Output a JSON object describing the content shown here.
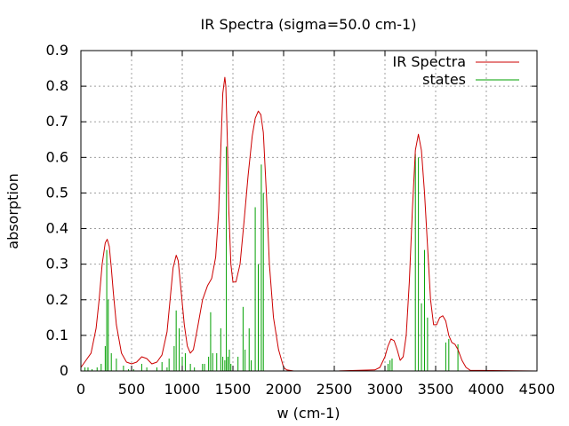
{
  "chart_data": {
    "type": "line",
    "title": "IR Spectra (sigma=50.0 cm-1)",
    "xlabel": "w (cm-1)",
    "ylabel": "absorption",
    "xlim": [
      0,
      4500
    ],
    "ylim": [
      0,
      0.9
    ],
    "xticks": [
      0,
      500,
      1000,
      1500,
      2000,
      2500,
      3000,
      3500,
      4000,
      4500
    ],
    "yticks": [
      0,
      0.1,
      0.2,
      0.3,
      0.4,
      0.5,
      0.6,
      0.7,
      0.8,
      0.9
    ],
    "xtick_labels": [
      "0",
      "500",
      "1000",
      "1500",
      "2000",
      "2500",
      "3000",
      "3500",
      "4000",
      "4500"
    ],
    "ytick_labels": [
      "0",
      "0.1",
      "0.2",
      "0.3",
      "0.4",
      "0.5",
      "0.6",
      "0.7",
      "0.8",
      "0.9"
    ],
    "grid": true,
    "legend_position": "top-right",
    "series": [
      {
        "name": "IR Spectra",
        "kind": "line",
        "color": "#cc0000",
        "x": [
          0,
          50,
          100,
          150,
          180,
          210,
          240,
          260,
          280,
          300,
          320,
          350,
          400,
          450,
          500,
          550,
          600,
          650,
          700,
          750,
          800,
          850,
          880,
          910,
          940,
          960,
          990,
          1020,
          1050,
          1080,
          1110,
          1150,
          1200,
          1250,
          1290,
          1330,
          1360,
          1380,
          1400,
          1420,
          1430,
          1445,
          1460,
          1480,
          1500,
          1530,
          1570,
          1610,
          1650,
          1690,
          1720,
          1750,
          1775,
          1800,
          1830,
          1860,
          1900,
          1950,
          2000,
          2030,
          2100,
          2500,
          2900,
          2950,
          3000,
          3030,
          3060,
          3090,
          3120,
          3150,
          3180,
          3210,
          3240,
          3270,
          3300,
          3330,
          3360,
          3390,
          3420,
          3450,
          3480,
          3510,
          3540,
          3570,
          3600,
          3630,
          3660,
          3690,
          3720,
          3760,
          3800,
          3840,
          4500
        ],
        "y": [
          0.01,
          0.03,
          0.05,
          0.12,
          0.2,
          0.3,
          0.36,
          0.37,
          0.35,
          0.29,
          0.22,
          0.13,
          0.05,
          0.025,
          0.02,
          0.025,
          0.04,
          0.035,
          0.02,
          0.025,
          0.045,
          0.11,
          0.2,
          0.29,
          0.325,
          0.31,
          0.22,
          0.13,
          0.07,
          0.05,
          0.06,
          0.12,
          0.2,
          0.24,
          0.26,
          0.32,
          0.45,
          0.62,
          0.78,
          0.825,
          0.8,
          0.65,
          0.45,
          0.3,
          0.25,
          0.25,
          0.3,
          0.42,
          0.55,
          0.66,
          0.71,
          0.73,
          0.72,
          0.67,
          0.5,
          0.3,
          0.15,
          0.06,
          0.01,
          0.003,
          0,
          0,
          0.003,
          0.01,
          0.04,
          0.07,
          0.09,
          0.085,
          0.06,
          0.03,
          0.04,
          0.1,
          0.25,
          0.45,
          0.62,
          0.665,
          0.62,
          0.5,
          0.35,
          0.2,
          0.13,
          0.13,
          0.15,
          0.155,
          0.14,
          0.1,
          0.08,
          0.075,
          0.06,
          0.03,
          0.01,
          0.002,
          0
        ]
      },
      {
        "name": "states",
        "kind": "impulses",
        "color": "#00a000",
        "x": [
          40,
          70,
          110,
          160,
          200,
          240,
          255,
          270,
          300,
          350,
          420,
          470,
          520,
          600,
          650,
          750,
          800,
          850,
          870,
          920,
          940,
          970,
          1000,
          1030,
          1080,
          1120,
          1200,
          1220,
          1260,
          1280,
          1300,
          1340,
          1380,
          1400,
          1420,
          1435,
          1450,
          1465,
          1480,
          1550,
          1600,
          1620,
          1660,
          1680,
          1720,
          1750,
          1780,
          1800,
          3030,
          3050,
          3070,
          3300,
          3330,
          3360,
          3390,
          3420,
          3600,
          3630,
          3720
        ],
        "y": [
          0.01,
          0.01,
          0.005,
          0.01,
          0.02,
          0.07,
          0.34,
          0.2,
          0.05,
          0.035,
          0.015,
          0.005,
          0.005,
          0.02,
          0.01,
          0.01,
          0.025,
          0.01,
          0.035,
          0.07,
          0.17,
          0.12,
          0.04,
          0.05,
          0.02,
          0.01,
          0.02,
          0.02,
          0.04,
          0.165,
          0.05,
          0.05,
          0.12,
          0.04,
          0.03,
          0.63,
          0.04,
          0.06,
          0.02,
          0.04,
          0.18,
          0.06,
          0.12,
          0.03,
          0.46,
          0.3,
          0.58,
          0.5,
          0.02,
          0.03,
          0.035,
          0.61,
          0.6,
          0.19,
          0.34,
          0.15,
          0.08,
          0.09,
          0.075
        ]
      }
    ]
  }
}
